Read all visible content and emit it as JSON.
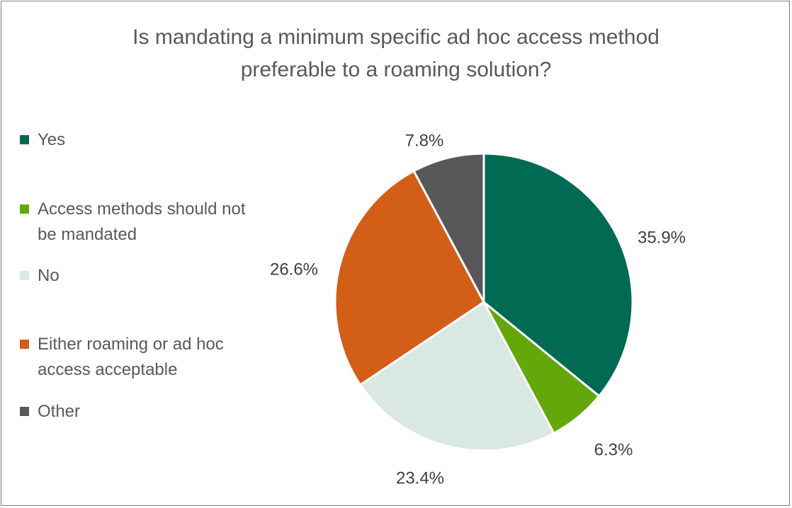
{
  "chart_data": {
    "type": "pie",
    "title_lines": [
      "Is mandating a minimum specific ad hoc access method",
      "preferable to a roaming solution?"
    ],
    "legend_placement": "left",
    "slices": [
      {
        "label_lines": [
          "Yes"
        ],
        "value": 35.9,
        "data_label": "35.9%",
        "color": "#006a52"
      },
      {
        "label_lines": [
          "Access methods should not",
          "be mandated"
        ],
        "value": 6.3,
        "data_label": "6.3%",
        "color": "#64a70b"
      },
      {
        "label_lines": [
          "No"
        ],
        "value": 23.4,
        "data_label": "23.4%",
        "color": "#d9e8e3"
      },
      {
        "label_lines": [
          "Either roaming or ad hoc",
          "access acceptable"
        ],
        "value": 26.6,
        "data_label": "26.6%",
        "color": "#d25e18"
      },
      {
        "label_lines": [
          "Other"
        ],
        "value": 7.8,
        "data_label": "7.8%",
        "color": "#58585b"
      }
    ]
  }
}
